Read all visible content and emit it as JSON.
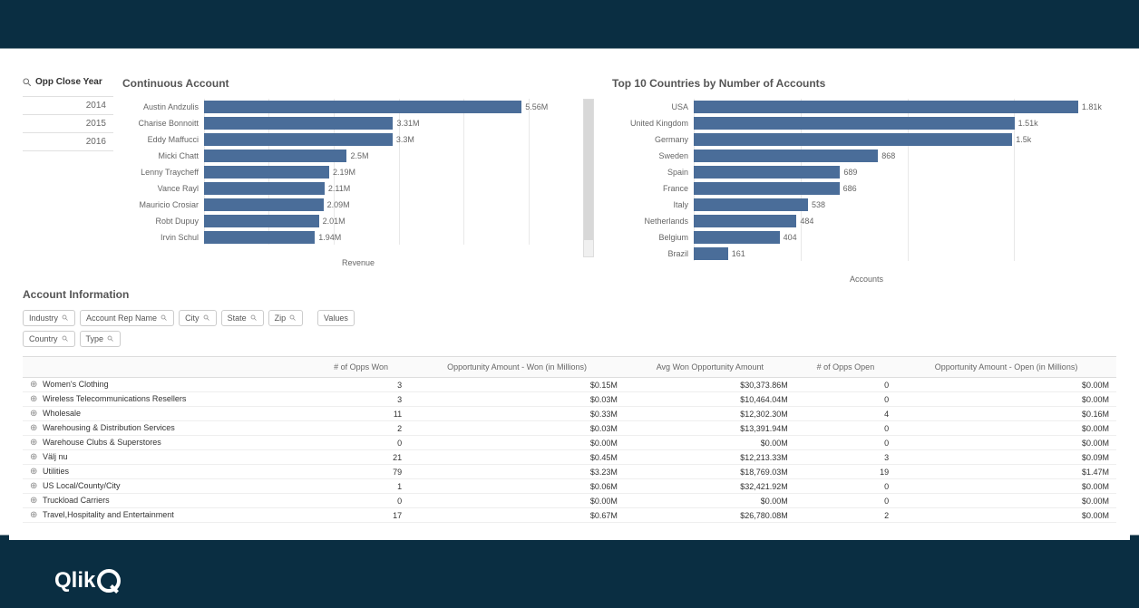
{
  "filter": {
    "title": "Opp Close Year",
    "years": [
      "2014",
      "2015",
      "2016"
    ]
  },
  "chart1": {
    "title": "Continuous Account",
    "type": "bar",
    "axis_label": "Revenue",
    "bar_color": "#4a6d99",
    "max_value": 5.56,
    "items": [
      {
        "label": "Austin Andzulis",
        "value": 5.56,
        "display": "5.56M"
      },
      {
        "label": "Charise Bonnoitt",
        "value": 3.31,
        "display": "3.31M"
      },
      {
        "label": "Eddy Maffucci",
        "value": 3.3,
        "display": "3.3M"
      },
      {
        "label": "Micki Chatt",
        "value": 2.5,
        "display": "2.5M"
      },
      {
        "label": "Lenny Traycheff",
        "value": 2.19,
        "display": "2.19M"
      },
      {
        "label": "Vance Rayl",
        "value": 2.11,
        "display": "2.11M"
      },
      {
        "label": "Mauricio Crosiar",
        "value": 2.09,
        "display": "2.09M"
      },
      {
        "label": "Robt Dupuy",
        "value": 2.01,
        "display": "2.01M"
      },
      {
        "label": "Irvin Schul",
        "value": 1.94,
        "display": "1.94M"
      }
    ]
  },
  "chart2": {
    "title": "Top 10 Countries by Number of Accounts",
    "type": "bar",
    "axis_label": "Accounts",
    "bar_color": "#4a6d99",
    "max_value": 1.81,
    "items": [
      {
        "label": "USA",
        "value": 1.81,
        "display": "1.81k"
      },
      {
        "label": "United Kingdom",
        "value": 1.51,
        "display": "1.51k"
      },
      {
        "label": "Germany",
        "value": 1.5,
        "display": "1.5k"
      },
      {
        "label": "Sweden",
        "value": 0.868,
        "display": "868"
      },
      {
        "label": "Spain",
        "value": 0.689,
        "display": "689"
      },
      {
        "label": "France",
        "value": 0.686,
        "display": "686"
      },
      {
        "label": "Italy",
        "value": 0.538,
        "display": "538"
      },
      {
        "label": "Netherlands",
        "value": 0.484,
        "display": "484"
      },
      {
        "label": "Belgium",
        "value": 0.404,
        "display": "404"
      },
      {
        "label": "Brazil",
        "value": 0.161,
        "display": "161"
      }
    ]
  },
  "info": {
    "title": "Account Information",
    "values_label": "Values",
    "filters": [
      "Industry",
      "Account Rep Name",
      "City",
      "State",
      "Zip",
      "Country",
      "Type"
    ],
    "columns": [
      "",
      "# of Opps Won",
      "Opportunity Amount - Won (in Millions)",
      "Avg Won Opportunity Amount",
      "# of Opps Open",
      "Opportunity Amount - Open (in Millions)"
    ],
    "rows": [
      {
        "name": "Women's Clothing",
        "c1": "3",
        "c2": "$0.15M",
        "c3": "$30,373.86M",
        "c4": "0",
        "c5": "$0.00M"
      },
      {
        "name": "Wireless Telecommunications Resellers",
        "c1": "3",
        "c2": "$0.03M",
        "c3": "$10,464.04M",
        "c4": "0",
        "c5": "$0.00M"
      },
      {
        "name": "Wholesale",
        "c1": "11",
        "c2": "$0.33M",
        "c3": "$12,302.30M",
        "c4": "4",
        "c5": "$0.16M"
      },
      {
        "name": "Warehousing & Distribution Services",
        "c1": "2",
        "c2": "$0.03M",
        "c3": "$13,391.94M",
        "c4": "0",
        "c5": "$0.00M"
      },
      {
        "name": "Warehouse Clubs & Superstores",
        "c1": "0",
        "c2": "$0.00M",
        "c3": "$0.00M",
        "c4": "0",
        "c5": "$0.00M"
      },
      {
        "name": "Välj nu",
        "c1": "21",
        "c2": "$0.45M",
        "c3": "$12,213.33M",
        "c4": "3",
        "c5": "$0.09M"
      },
      {
        "name": "Utilities",
        "c1": "79",
        "c2": "$3.23M",
        "c3": "$18,769.03M",
        "c4": "19",
        "c5": "$1.47M"
      },
      {
        "name": "US Local/County/City",
        "c1": "1",
        "c2": "$0.06M",
        "c3": "$32,421.92M",
        "c4": "0",
        "c5": "$0.00M"
      },
      {
        "name": "Truckload Carriers",
        "c1": "0",
        "c2": "$0.00M",
        "c3": "$0.00M",
        "c4": "0",
        "c5": "$0.00M"
      },
      {
        "name": "Travel,Hospitality and Entertainment",
        "c1": "17",
        "c2": "$0.67M",
        "c3": "$26,780.08M",
        "c4": "2",
        "c5": "$0.00M"
      }
    ]
  },
  "logo_text": "Qlik"
}
